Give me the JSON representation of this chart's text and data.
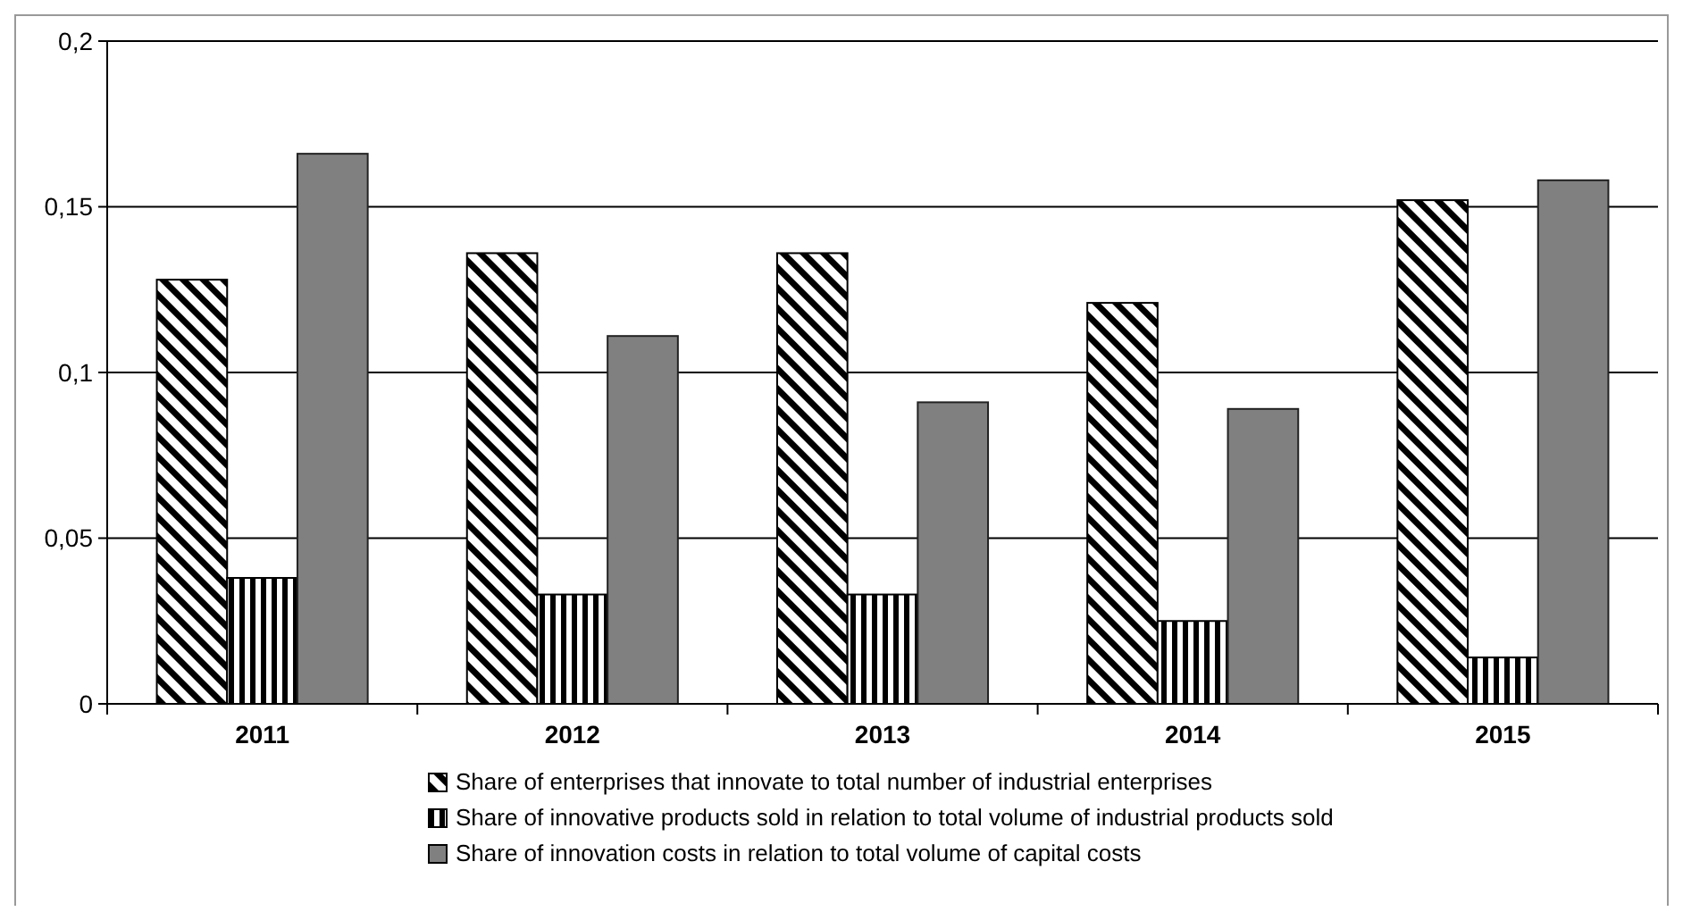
{
  "chart_data": {
    "type": "bar",
    "categories": [
      "2011",
      "2012",
      "2013",
      "2014",
      "2015"
    ],
    "series": [
      {
        "name": "Share of enterprises that innovate to total number of industrial enterprises",
        "color": "#000000",
        "values": [
          0.128,
          0.136,
          0.136,
          0.121,
          0.152
        ]
      },
      {
        "name": "Share of innovative products sold in relation to total volume of industrial products sold",
        "color": "#000000",
        "values": [
          0.038,
          0.033,
          0.033,
          0.025,
          0.014
        ]
      },
      {
        "name": "Share of innovation costs in relation to total volume of capital costs",
        "color": "#808080",
        "values": [
          0.166,
          0.111,
          0.091,
          0.089,
          0.158
        ]
      }
    ],
    "ylim": [
      0,
      0.2
    ],
    "yticks": [
      {
        "value": 0,
        "label": "0"
      },
      {
        "value": 0.05,
        "label": "0,05"
      },
      {
        "value": 0.1,
        "label": "0,1"
      },
      {
        "value": 0.15,
        "label": "0,15"
      },
      {
        "value": 0.2,
        "label": "0,2"
      }
    ],
    "grid": "y",
    "legend": "bottom"
  }
}
